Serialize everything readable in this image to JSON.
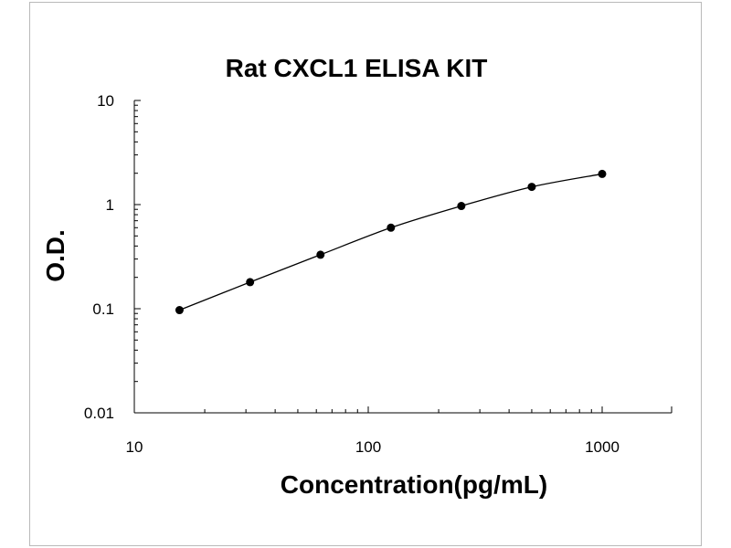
{
  "chart_data": {
    "type": "line",
    "title": "Rat CXCL1 ELISA KIT",
    "xlabel": "Concentration(pg/mL)",
    "ylabel": "O.D.",
    "x_scale": "log",
    "y_scale": "log",
    "xlim": [
      10,
      2000
    ],
    "ylim": [
      0.01,
      10
    ],
    "x_ticks": [
      "10",
      "100",
      "1000"
    ],
    "y_ticks": [
      "10",
      "1",
      "0.1",
      "0.01"
    ],
    "grid": false,
    "legend": "none",
    "series": [
      {
        "x": [
          15.6,
          31.25,
          62.5,
          125,
          250,
          500,
          1000
        ],
        "y": [
          0.097,
          0.18,
          0.33,
          0.6,
          0.97,
          1.48,
          1.97
        ]
      }
    ],
    "colors": {
      "line": "#000000",
      "marker": "#000000"
    }
  }
}
